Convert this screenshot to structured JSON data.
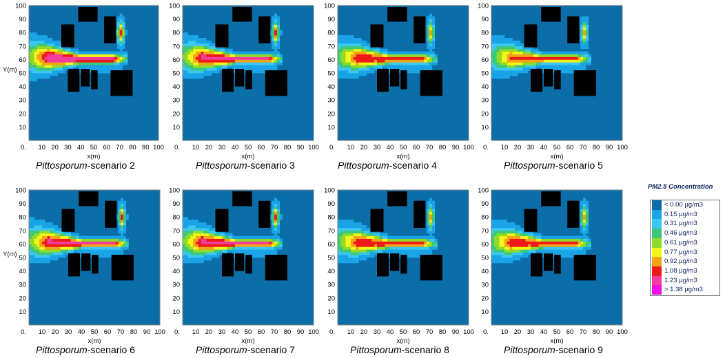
{
  "colors": {
    "background": "#0c6ea8",
    "building": "#000000",
    "scale": [
      "#0c6ea8",
      "#18a4e6",
      "#3cc7f2",
      "#3cc87a",
      "#8fdc28",
      "#f4f418",
      "#f2a418",
      "#ee1a1a",
      "#f23d9d",
      "#f00fe8"
    ]
  },
  "legend": {
    "title": "PM2.5 Concentration",
    "items": [
      "< 0.00 μg/m3",
      "0.15  μg/m3",
      "0.31  μg/m3",
      "0.46  μg/m3",
      "0.61  μg/m3",
      "0.77  μg/m3",
      "0.92  μg/m3",
      "1.08  μg/m3",
      "1.23  μg/m3",
      "> 1.38 μg/m3"
    ]
  },
  "chart_data": [
    {
      "type": "heatmap",
      "caption_italic": "Pittosporum",
      "caption_rest": "-scenario 2",
      "xlabel": "x(m)",
      "ylabel": "Y(m)",
      "xlim": [
        0,
        100
      ],
      "ylim": [
        0,
        100
      ],
      "xticks": [
        "0.",
        "10",
        "20",
        "30",
        "40",
        "50",
        "60",
        "70",
        "80",
        "90",
        "100"
      ],
      "yticks": [
        "10",
        "20",
        "30",
        "40",
        "50",
        "60",
        "70",
        "80",
        "90",
        "100"
      ],
      "plume_peak": 1.38
    },
    {
      "type": "heatmap",
      "caption_italic": "Pittosporum",
      "caption_rest": "-scenario 3",
      "xlabel": "x(m)",
      "ylabel": "",
      "xlim": [
        0,
        100
      ],
      "ylim": [
        0,
        100
      ],
      "xticks": [
        "0.",
        "10",
        "20",
        "30",
        "40",
        "50",
        "60",
        "70",
        "80",
        "90",
        "100"
      ],
      "yticks": [
        "10",
        "20",
        "30",
        "40",
        "50",
        "60",
        "70",
        "80",
        "90",
        "100"
      ],
      "plume_peak": 1.3
    },
    {
      "type": "heatmap",
      "caption_italic": "Pittosporum",
      "caption_rest": "-scenario 4",
      "xlabel": "x(m)",
      "ylabel": "",
      "xlim": [
        0,
        100
      ],
      "ylim": [
        0,
        100
      ],
      "xticks": [
        "0.",
        "10",
        "20",
        "30",
        "40",
        "50",
        "60",
        "70",
        "80",
        "90",
        "100"
      ],
      "yticks": [
        "10",
        "20",
        "30",
        "40",
        "50",
        "60",
        "70",
        "80",
        "90",
        "100"
      ],
      "plume_peak": 1.2
    },
    {
      "type": "heatmap",
      "caption_italic": "Pittosporum",
      "caption_rest": "-scenario 5",
      "xlabel": "x(m)",
      "ylabel": "",
      "xlim": [
        0,
        100
      ],
      "ylim": [
        0,
        100
      ],
      "xticks": [
        "0.",
        "10",
        "20",
        "30",
        "40",
        "50",
        "60",
        "70",
        "80",
        "90",
        "100"
      ],
      "yticks": [
        "10",
        "20",
        "30",
        "40",
        "50",
        "60",
        "70",
        "80",
        "90",
        "100"
      ],
      "plume_peak": 1.1
    },
    {
      "type": "heatmap",
      "caption_italic": "Pittosporum",
      "caption_rest": "-scenario 6",
      "xlabel": "x(m)",
      "ylabel": "Y(m)",
      "xlim": [
        0,
        100
      ],
      "ylim": [
        0,
        100
      ],
      "xticks": [
        "0.",
        "10",
        "20",
        "30",
        "40",
        "50",
        "60",
        "70",
        "80",
        "90",
        "100"
      ],
      "yticks": [
        "10",
        "20",
        "30",
        "40",
        "50",
        "60",
        "70",
        "80",
        "90",
        "100"
      ],
      "plume_peak": 1.3
    },
    {
      "type": "heatmap",
      "caption_italic": "Pittosporum",
      "caption_rest": "-scenario 7",
      "xlabel": "x(m)",
      "ylabel": "",
      "xlim": [
        0,
        100
      ],
      "ylim": [
        0,
        100
      ],
      "xticks": [
        "0.",
        "10",
        "20",
        "30",
        "40",
        "50",
        "60",
        "70",
        "80",
        "90",
        "100"
      ],
      "yticks": [
        "10",
        "20",
        "30",
        "40",
        "50",
        "60",
        "70",
        "80",
        "90",
        "100"
      ],
      "plume_peak": 1.3
    },
    {
      "type": "heatmap",
      "caption_italic": "Pittosporum",
      "caption_rest": "-scenario 8",
      "xlabel": "x(m)",
      "ylabel": "",
      "xlim": [
        0,
        100
      ],
      "ylim": [
        0,
        100
      ],
      "xticks": [
        "0.",
        "10",
        "20",
        "30",
        "40",
        "50",
        "60",
        "70",
        "80",
        "90",
        "100"
      ],
      "yticks": [
        "10",
        "20",
        "30",
        "40",
        "50",
        "60",
        "70",
        "80",
        "90",
        "100"
      ],
      "plume_peak": 1.2
    },
    {
      "type": "heatmap",
      "caption_italic": "Pittosporum",
      "caption_rest": "-scenario 9",
      "xlabel": "x(m)",
      "ylabel": "",
      "xlim": [
        0,
        100
      ],
      "ylim": [
        0,
        100
      ],
      "xticks": [
        "0.",
        "10",
        "20",
        "30",
        "40",
        "50",
        "60",
        "70",
        "80",
        "90",
        "100"
      ],
      "yticks": [
        "10",
        "20",
        "30",
        "40",
        "50",
        "60",
        "70",
        "80",
        "90",
        "100"
      ],
      "plume_peak": 1.2
    }
  ]
}
